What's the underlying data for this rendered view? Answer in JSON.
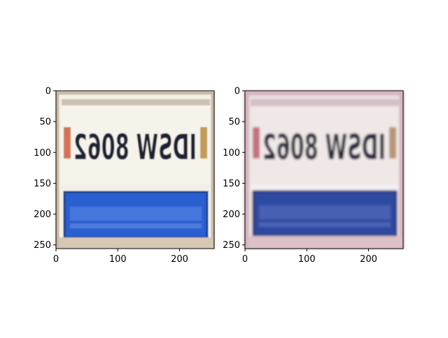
{
  "figure": {
    "panels": [
      {
        "name": "left",
        "x_ticks": [
          "0",
          "100",
          "200"
        ],
        "y_ticks": [
          "0",
          "50",
          "100",
          "150",
          "200",
          "250"
        ],
        "xlim": [
          0,
          256
        ],
        "ylim": [
          256,
          0
        ],
        "plate": {
          "text": "IDSW 8062",
          "top_bg": "#f4f1e6",
          "text_color": "#1b2036",
          "bottom_color": "#2a5fd0",
          "frame_color": "#c8b9a6",
          "blur": 0.7
        }
      },
      {
        "name": "right",
        "x_ticks": [
          "0",
          "100",
          "200"
        ],
        "y_ticks": [
          "0",
          "50",
          "100",
          "150",
          "200",
          "250"
        ],
        "xlim": [
          0,
          256
        ],
        "ylim": [
          256,
          0
        ],
        "plate": {
          "text": "IDSW 8062",
          "top_bg": "#e9e0e2",
          "text_color": "#262437",
          "bottom_color": "#2f4aa0",
          "frame_color": "#d5b2bd",
          "blur": 1.6
        }
      }
    ]
  }
}
